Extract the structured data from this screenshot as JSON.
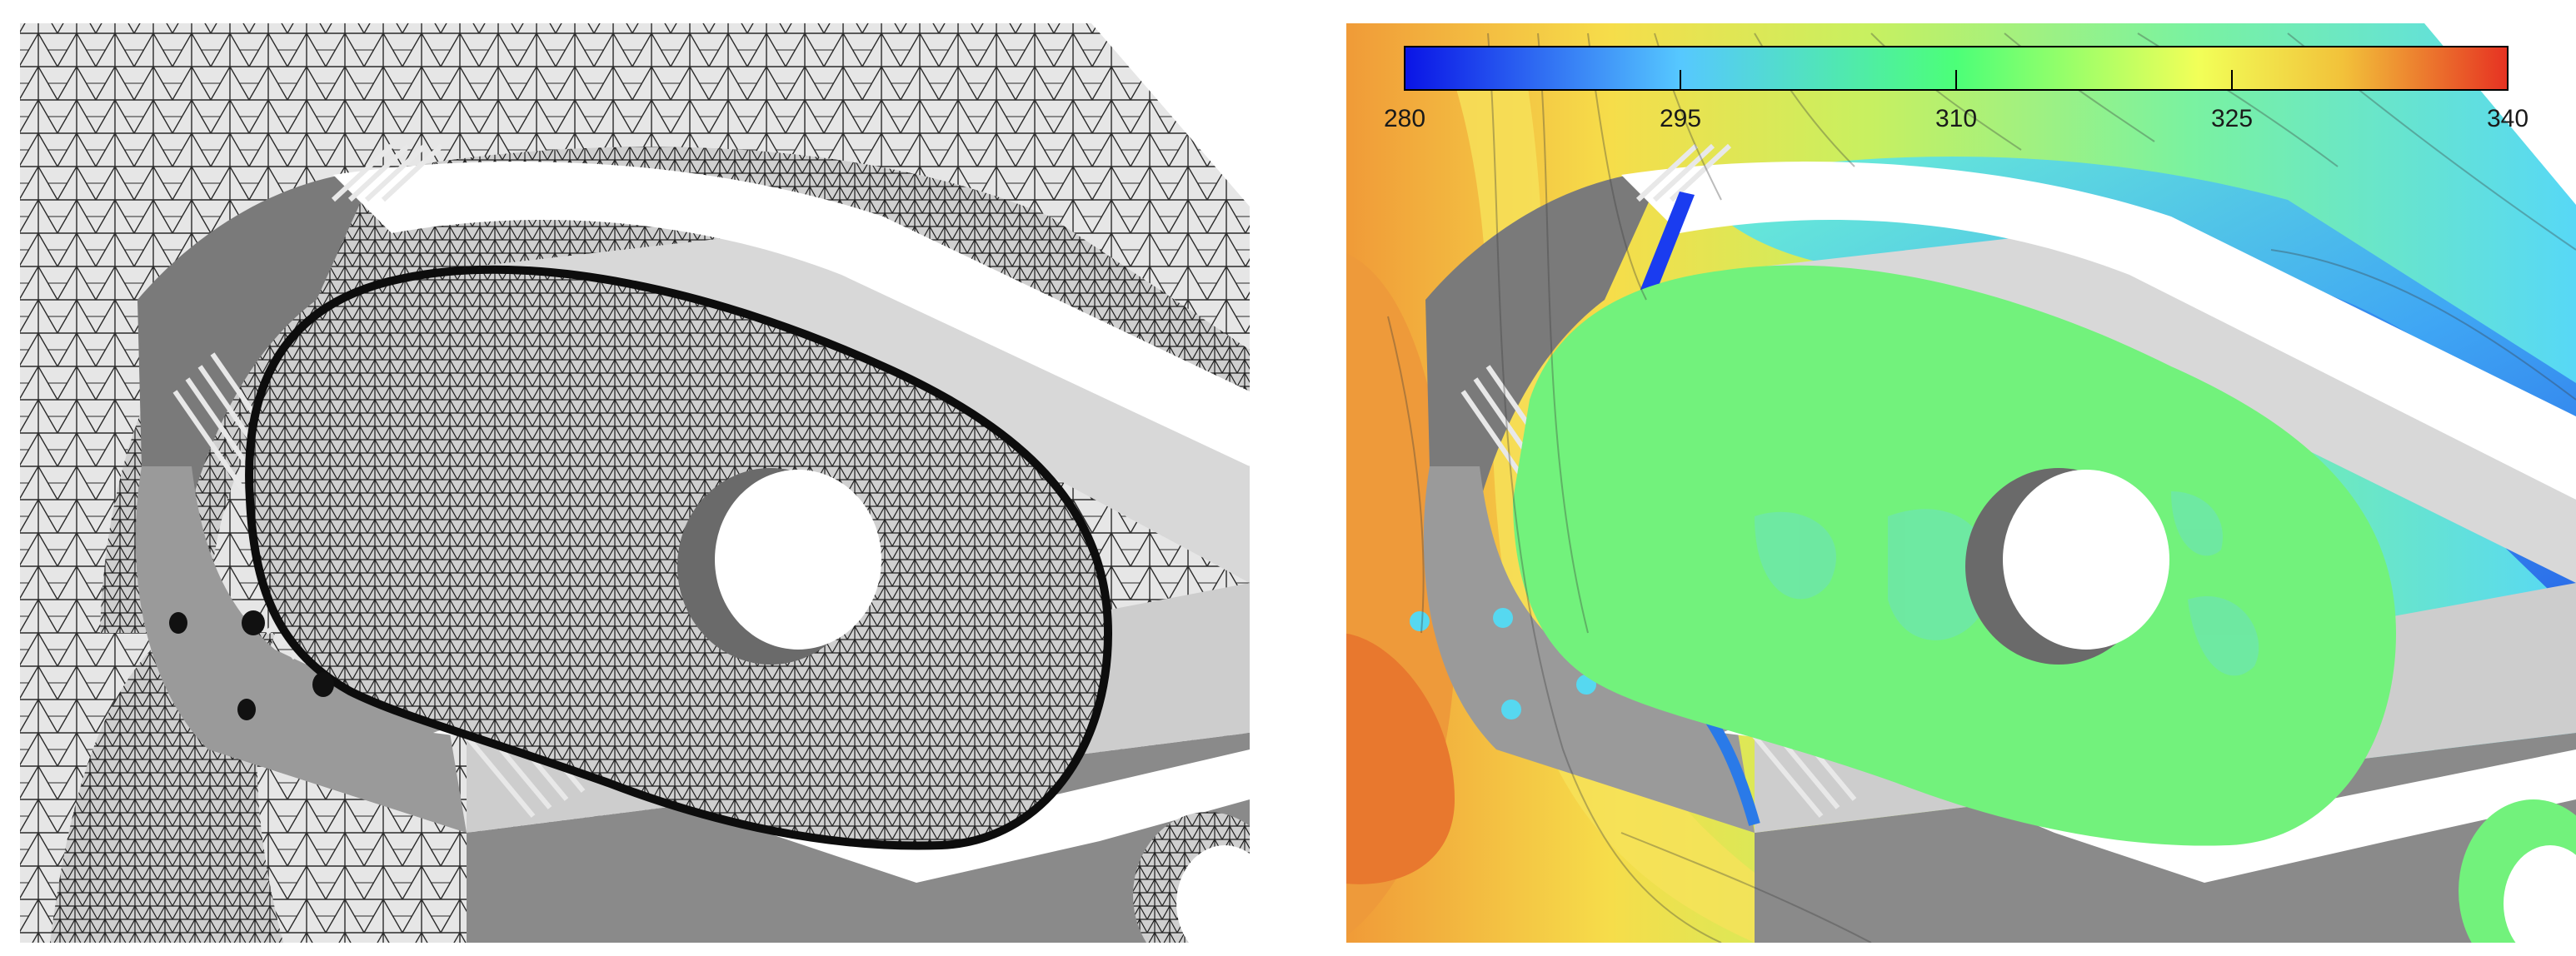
{
  "colorbar": {
    "ticks": [
      "280",
      "295",
      "310",
      "325",
      "340"
    ],
    "min": 280,
    "max": 340,
    "colors": [
      "#0a14e6",
      "#56c8ff",
      "#4cff78",
      "#f2ff58",
      "#f2c23a",
      "#e63222"
    ]
  },
  "colors": {
    "mesh_line": "#1a1a1a",
    "mesh_bg": "#e3e3e3",
    "solid_dark": "#6e6e6e",
    "solid_mid": "#9a9a9a",
    "solid_light": "#cfcfcf",
    "contour_green": "#72f27c",
    "contour_orange": "#ee9a3a",
    "contour_blue": "#2f80ee"
  }
}
